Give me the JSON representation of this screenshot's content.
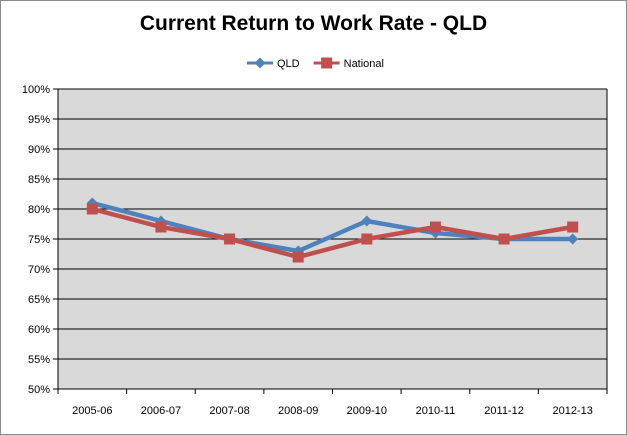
{
  "chart_data": {
    "type": "line",
    "title": "Current Return to Work Rate - QLD",
    "xlabel": "",
    "ylabel": "",
    "categories": [
      "2005-06",
      "2006-07",
      "2007-08",
      "2008-09",
      "2009-10",
      "2010-11",
      "2011-12",
      "2012-13"
    ],
    "y_ticks": [
      "50%",
      "55%",
      "60%",
      "65%",
      "70%",
      "75%",
      "80%",
      "85%",
      "90%",
      "95%",
      "100%"
    ],
    "ylim": [
      50,
      100
    ],
    "grid": true,
    "legend_position": "top",
    "series": [
      {
        "name": "QLD",
        "color": "#4f81bd",
        "marker": "diamond",
        "values": [
          81,
          78,
          75,
          73,
          78,
          76,
          75,
          75
        ]
      },
      {
        "name": "National",
        "color": "#c0504d",
        "marker": "square",
        "values": [
          80,
          77,
          75,
          72,
          75,
          77,
          75,
          77
        ]
      }
    ],
    "plot_background": "#d9d9d9",
    "gridline_color": "#000000"
  }
}
